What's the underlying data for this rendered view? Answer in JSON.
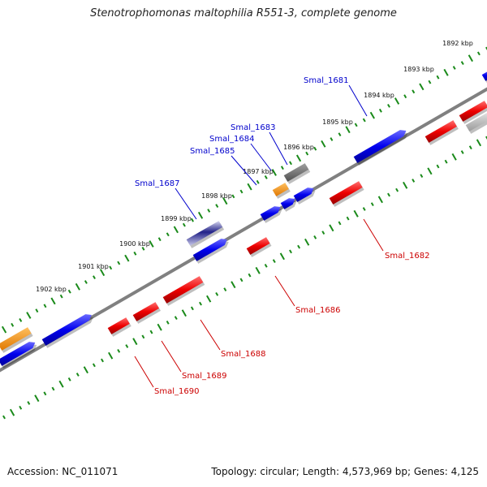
{
  "title": "Stenotrophomonas maltophilia R551-3, complete genome",
  "footer": {
    "accession": "Accession: NC_011071",
    "summary": "Topology: circular; Length: 4,573,969 bp; Genes: 4,125"
  },
  "colors": {
    "forward_gene": "#0000ee",
    "reverse_gene": "#ee0000",
    "other_gene": "#ff8c00",
    "pseudo_gene": "#888888",
    "selected_gene": "#222288",
    "ruler": "#1a8a1a",
    "backbone": "#808080",
    "forward_label": "#0000cc",
    "reverse_label": "#cc0000"
  },
  "ticks": [
    {
      "label": "1892 kbp"
    },
    {
      "label": "1893 kbp"
    },
    {
      "label": "1894 kbp"
    },
    {
      "label": "1895 kbp"
    },
    {
      "label": "1896 kbp"
    },
    {
      "label": "1897 kbp"
    },
    {
      "label": "1898 kbp"
    },
    {
      "label": "1899 kbp"
    },
    {
      "label": "1900 kbp"
    },
    {
      "label": "1901 kbp"
    },
    {
      "label": "1902 kbp"
    }
  ],
  "genes": [
    {
      "name": "Smal_1681",
      "strand": "forward"
    },
    {
      "name": "Smal_1682",
      "strand": "reverse"
    },
    {
      "name": "Smal_1683",
      "strand": "forward"
    },
    {
      "name": "Smal_1684",
      "strand": "forward"
    },
    {
      "name": "Smal_1685",
      "strand": "forward"
    },
    {
      "name": "Smal_1686",
      "strand": "reverse"
    },
    {
      "name": "Smal_1687",
      "strand": "forward"
    },
    {
      "name": "Smal_1688",
      "strand": "reverse"
    },
    {
      "name": "Smal_1689",
      "strand": "reverse"
    },
    {
      "name": "Smal_1690",
      "strand": "reverse"
    }
  ]
}
